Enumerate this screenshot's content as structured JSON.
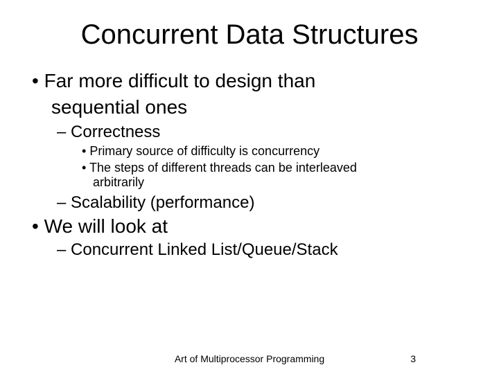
{
  "title": "Concurrent Data Structures",
  "bullets": {
    "b1_line1": "Far more difficult to design than",
    "b1_line2": "sequential ones",
    "b1_sub1": "Correctness",
    "b1_sub1_a": "Primary source of difficulty is concurrency",
    "b1_sub1_b_line1": "The steps of different threads can be interleaved",
    "b1_sub1_b_line2": "arbitrarily",
    "b1_sub2": "Scalability (performance)",
    "b2": "We will look at",
    "b2_sub1": "Concurrent Linked List/Queue/Stack"
  },
  "footer": {
    "source": "Art of Multiprocessor Programming",
    "page": "3"
  },
  "style": {
    "background": "#ffffff",
    "text_color": "#000000",
    "font_family": "Comic Sans MS",
    "title_fontsize": 40,
    "lvl1_fontsize": 28,
    "lvl2_fontsize": 24,
    "lvl3_fontsize": 18,
    "footer_fontsize": 14
  }
}
